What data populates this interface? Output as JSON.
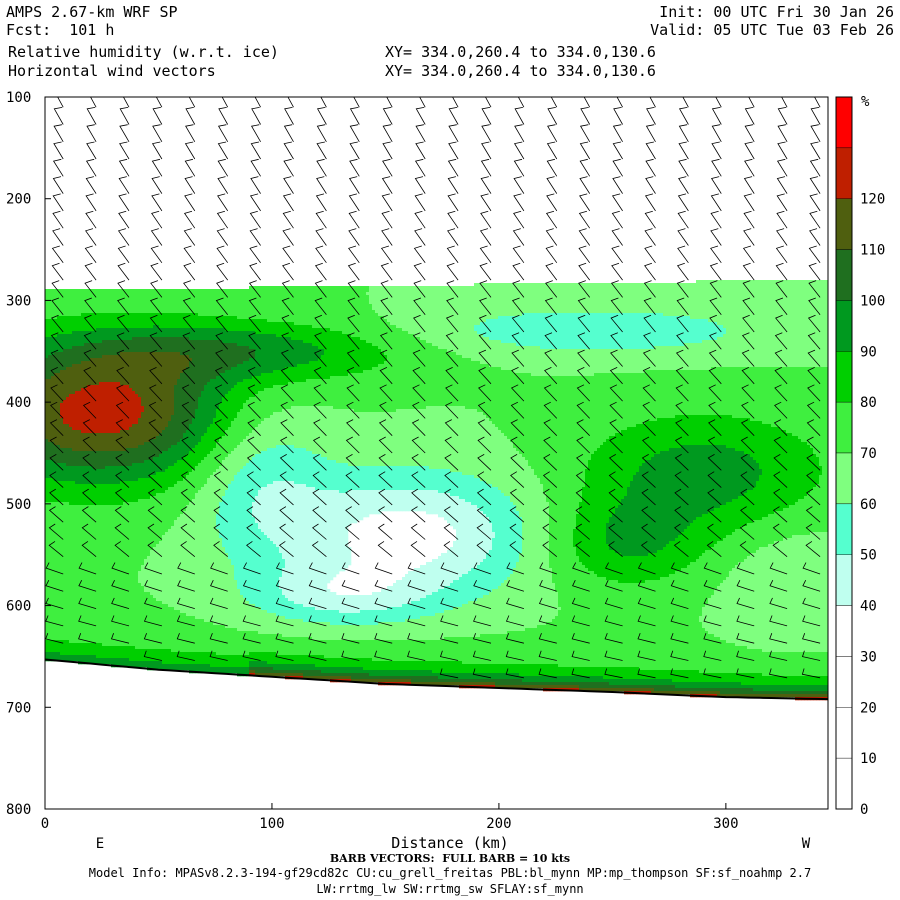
{
  "header": {
    "model": "AMPS 2.67-km WRF SP",
    "fcst": "Fcst:  101 h",
    "field1": "Relative humidity (w.r.t. ice)",
    "field2": "Horizontal wind vectors",
    "init": "Init: 00 UTC Fri 30 Jan 26",
    "valid": "Valid: 05 UTC Tue 03 Feb 26",
    "xy1": "XY= 334.0,260.4 to 334.0,130.6",
    "xy2": "XY= 334.0,260.4 to 334.0,130.6"
  },
  "footer": {
    "barb_note": "BARB VECTORS:  FULL BARB = 10 kts",
    "model_info": "Model Info: MPASv8.2.3-194-gf29cd82c CU:cu_grell_freitas PBL:bl_mynn MP:mp_thompson SF:sf_noahmp 2.7",
    "model_info2": "LW:rrtmg_lw SW:rrtmg_sw SFLAY:sf_mynn"
  },
  "colors": {
    "rh_bins": [
      "#ffffff",
      "#ffffff",
      "#ffffff",
      "#ffffff",
      "#bfffef",
      "#55ffcf",
      "#7fff7f",
      "#3fef3f",
      "#00cf00",
      "#00991f",
      "#1f6f1f",
      "#4f5f0f",
      "#bf1f00",
      "#ff0000"
    ],
    "ground": "#ffffff"
  },
  "chart_data": {
    "type": "heatmap",
    "title": "Relative humidity (w.r.t. ice)",
    "xlabel": "Distance (km)",
    "ylabel": "",
    "x_start_label": "E",
    "x_end_label": "W",
    "xlim": [
      0,
      345
    ],
    "ylim": [
      800,
      100
    ],
    "x_ticks": [
      0,
      100,
      200,
      300
    ],
    "y_ticks": [
      100,
      200,
      300,
      400,
      500,
      600,
      700,
      800
    ],
    "colorbar": {
      "unit": "%",
      "levels": [
        120,
        110,
        100,
        90,
        80,
        70,
        60,
        50,
        40,
        30,
        20,
        10,
        0
      ]
    },
    "terrain_pressure": [
      [
        0,
        653
      ],
      [
        50,
        663
      ],
      [
        100,
        670
      ],
      [
        150,
        677
      ],
      [
        200,
        681
      ],
      [
        250,
        685
      ],
      [
        300,
        690
      ],
      [
        345,
        692
      ]
    ],
    "calm_column_x": 173,
    "regions": [
      {
        "desc": "moist layer top (RH>=30)",
        "x": [
          0,
          345
        ],
        "p": [
          280,
          300
        ]
      },
      {
        "desc": "upper saturated core (RH>110)",
        "x": [
          0,
          80
        ],
        "p": [
          345,
          470
        ]
      },
      {
        "desc": "dry slot (RH 30-40)",
        "x": [
          100,
          210
        ],
        "p": [
          460,
          610
        ]
      },
      {
        "desc": "near-surface saturated layer (RH>110)",
        "x": [
          100,
          345
        ],
        "p": [
          655,
          690
        ]
      }
    ]
  }
}
